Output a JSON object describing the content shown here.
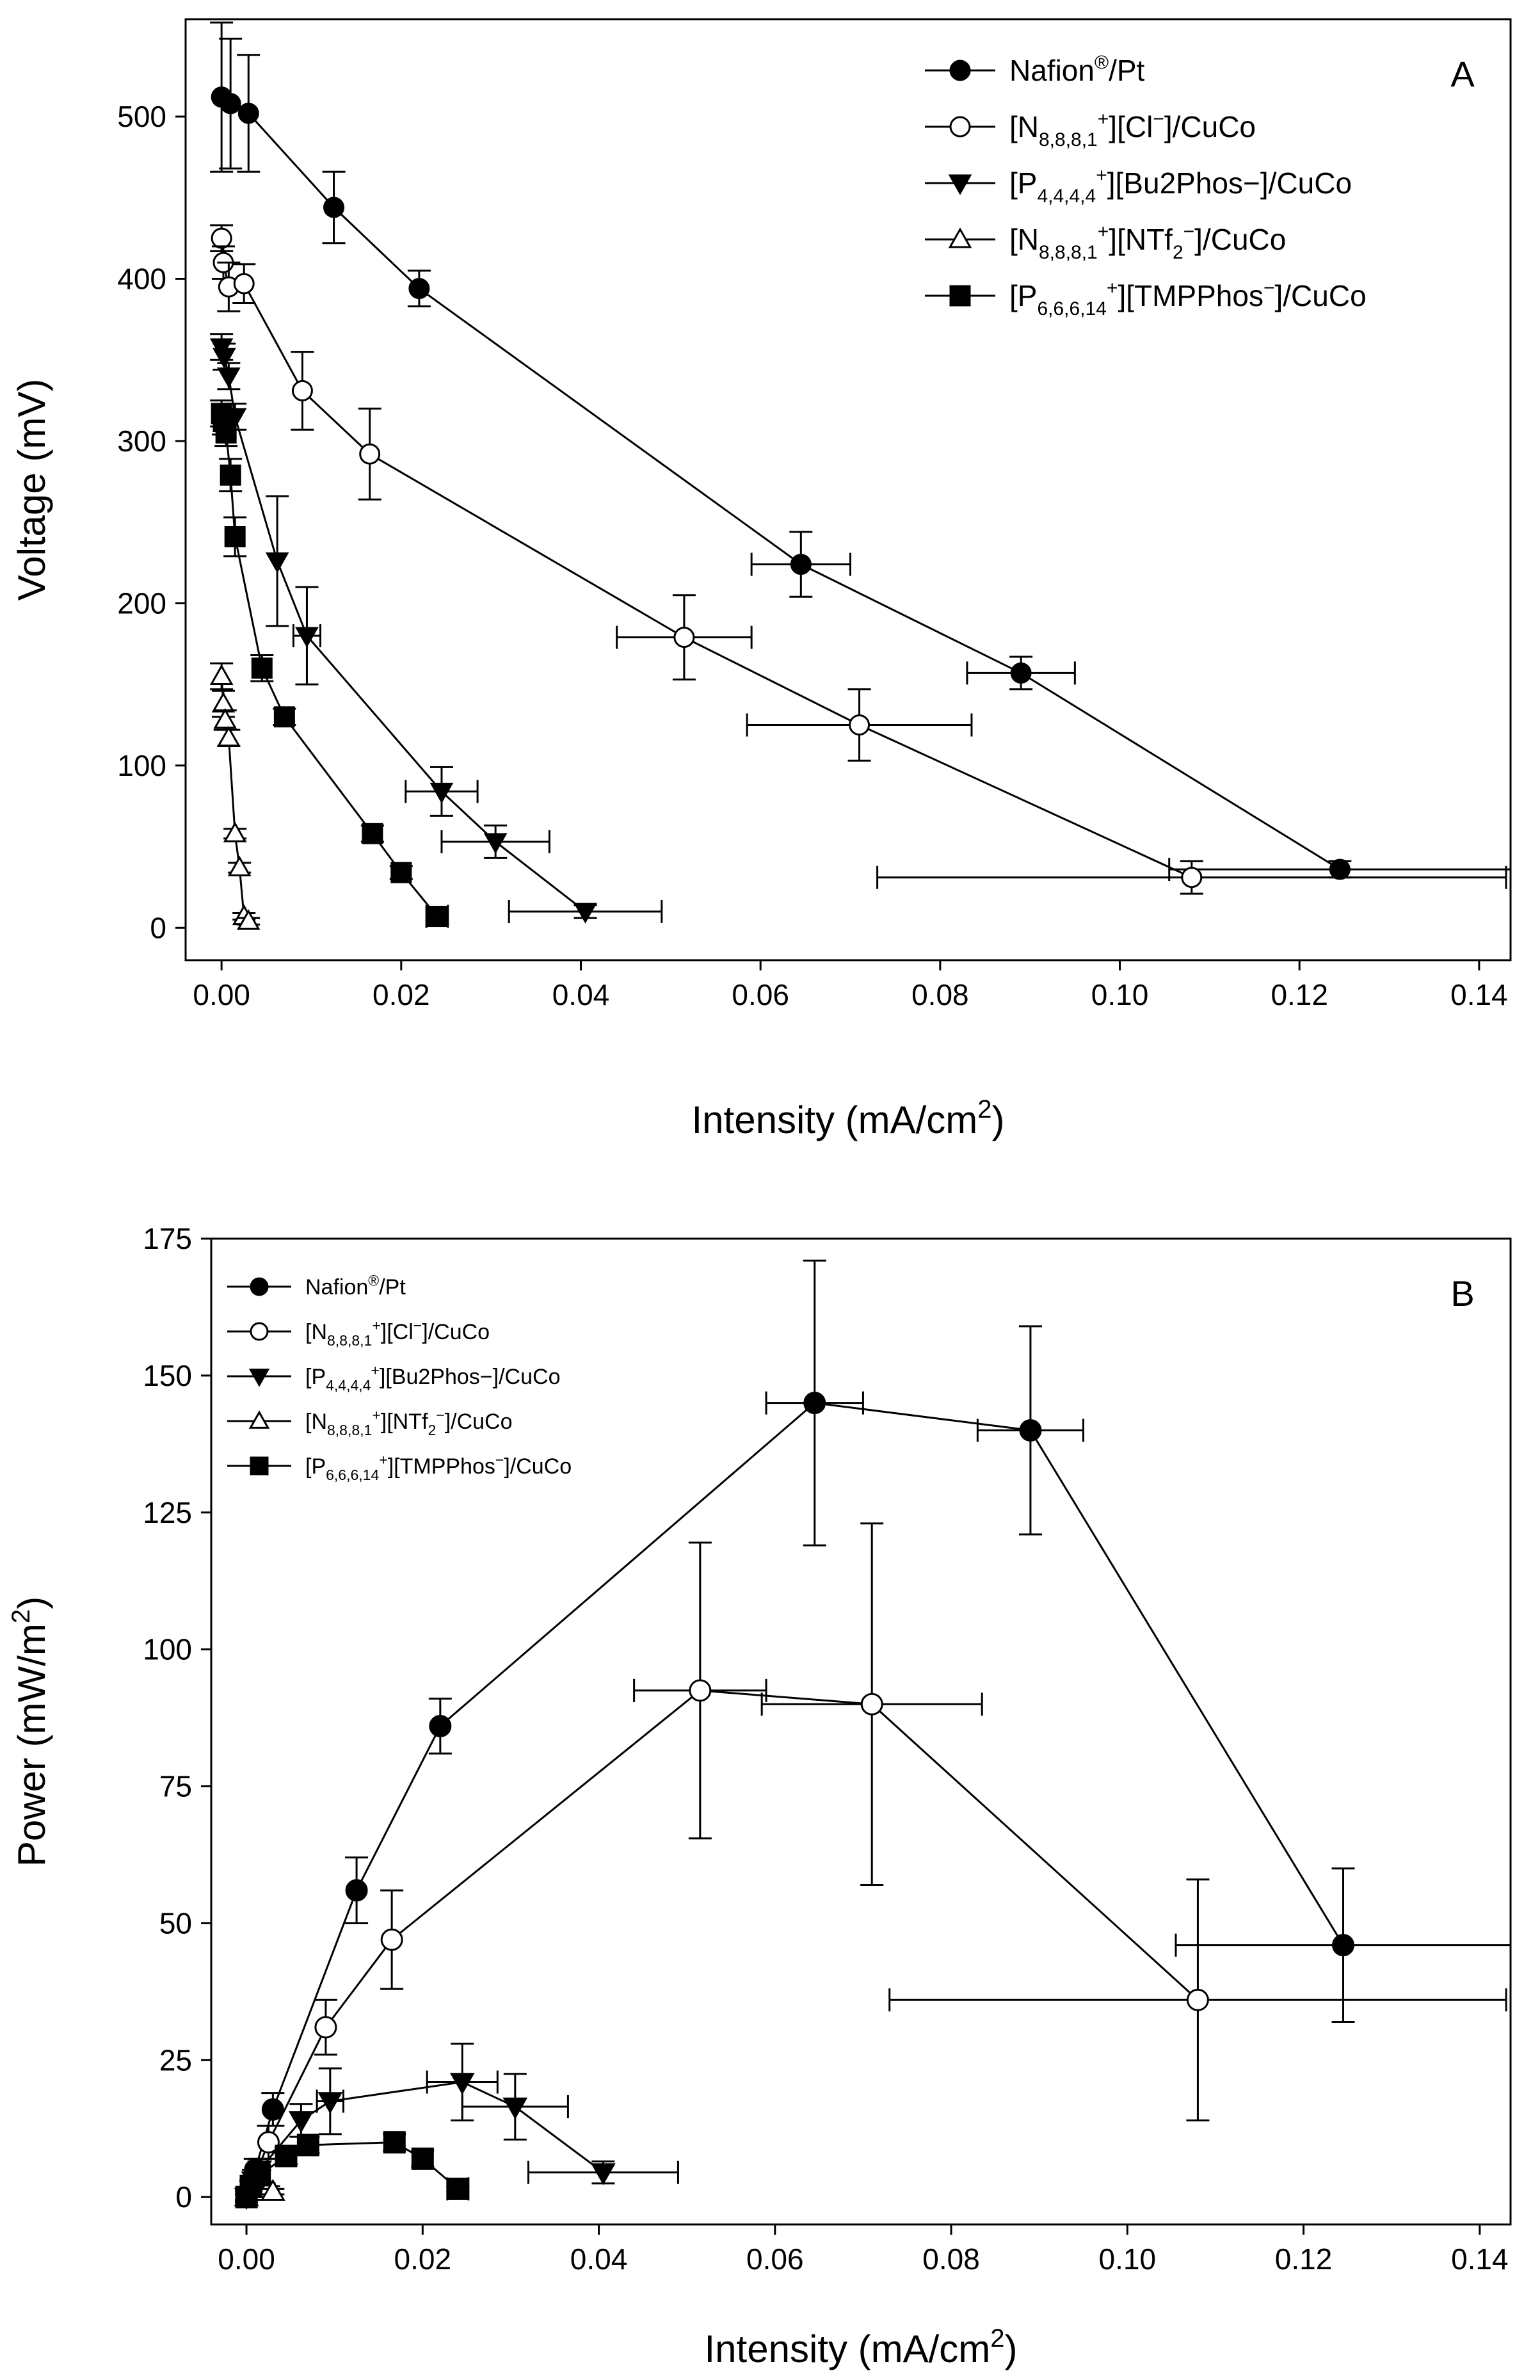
{
  "chart_data": [
    {
      "type": "scatter",
      "panel_label": "A",
      "xlabel": "Intensity (mA/cm",
      "xlabel_sup": "2",
      "xlabel_end": ")",
      "ylabel": "Voltage (mV)",
      "xlim": [
        -0.004,
        0.1435
      ],
      "ylim": [
        -20,
        560
      ],
      "xticks": [
        0,
        0.02,
        0.04,
        0.06,
        0.08,
        0.1,
        0.12,
        0.14
      ],
      "xtick_labels": [
        "0.00",
        "0.02",
        "0.04",
        "0.06",
        "0.08",
        "0.10",
        "0.12",
        "0.14"
      ],
      "yticks": [
        0,
        100,
        200,
        300,
        400,
        500
      ],
      "ytick_labels": [
        "0",
        "100",
        "200",
        "300",
        "400",
        "500"
      ],
      "grid": false,
      "legend_position": "top-right",
      "series": [
        {
          "name": "Nafion®/Pt",
          "marker": "circle-filled",
          "x": [
            0,
            0.001,
            0.003,
            0.0125,
            0.022,
            0.0645,
            0.089,
            0.1245
          ],
          "y": [
            512,
            508,
            502,
            444,
            394,
            224,
            157,
            36
          ],
          "yerr": [
            46,
            40,
            36,
            22,
            11,
            20,
            10,
            5
          ],
          "xerr": [
            0,
            0,
            0,
            0,
            0,
            0.0055,
            0.006,
            0.019
          ]
        },
        {
          "name": "[N8,8,8,1+][Cl−]/CuCo",
          "marker": "circle-open",
          "x": [
            0,
            0.0002,
            0.0008,
            0.0025,
            0.009,
            0.0165,
            0.0515,
            0.071,
            0.108
          ],
          "y": [
            425,
            410,
            395,
            397,
            331,
            292,
            179,
            125,
            31
          ],
          "yerr": [
            8,
            10,
            15,
            12,
            24,
            28,
            26,
            22,
            10
          ],
          "xerr": [
            0,
            0,
            0,
            0,
            0,
            0,
            0.0075,
            0.0125,
            0.035
          ]
        },
        {
          "name": "[P4,4,4,4+][Bu2Phos−]/CuCo",
          "marker": "triangle-down-filled",
          "x": [
            0,
            0.0003,
            0.0008,
            0.0015,
            0.0062,
            0.0095,
            0.0245,
            0.0305,
            0.0405
          ],
          "y": [
            358,
            352,
            340,
            315,
            226,
            180,
            84,
            53,
            10
          ],
          "yerr": [
            8,
            8,
            8,
            8,
            40,
            30,
            15,
            10,
            4
          ],
          "xerr": [
            0,
            0,
            0,
            0,
            0,
            0.0015,
            0.004,
            0.006,
            0.0085
          ]
        },
        {
          "name": "[N8,8,8,1+][NTf2−]/CuCo",
          "marker": "triangle-up-open",
          "x": [
            0,
            0.0002,
            0.0004,
            0.0008,
            0.0015,
            0.002,
            0.0025,
            0.003
          ],
          "y": [
            155,
            138,
            128,
            117,
            58,
            37,
            7,
            4
          ],
          "yerr": [
            8,
            8,
            6,
            5,
            3,
            3,
            2,
            2
          ],
          "xerr": [
            0,
            0,
            0,
            0,
            0,
            0,
            0,
            0
          ]
        },
        {
          "name": "[P6,6,6,14+][TMPPhos−]/CuCo",
          "marker": "square-filled",
          "x": [
            0,
            0.0002,
            0.0005,
            0.001,
            0.0015,
            0.0045,
            0.007,
            0.0168,
            0.02,
            0.024
          ],
          "y": [
            317,
            312,
            305,
            279,
            241,
            160,
            130,
            58,
            34,
            7
          ],
          "yerr": [
            8,
            8,
            8,
            10,
            12,
            8,
            5,
            5,
            4,
            3
          ],
          "xerr": [
            0,
            0,
            0,
            0,
            0,
            0,
            0,
            0,
            0,
            0.0012
          ]
        }
      ]
    },
    {
      "type": "scatter",
      "panel_label": "B",
      "xlabel": "Intensity (mA/cm",
      "xlabel_sup": "2",
      "xlabel_end": ")",
      "ylabel": "Power (mW/m",
      "ylabel_sup": "2",
      "ylabel_end": ")",
      "xlim": [
        -0.004,
        0.1435
      ],
      "ylim": [
        -5,
        175
      ],
      "xticks": [
        0,
        0.02,
        0.04,
        0.06,
        0.08,
        0.1,
        0.12,
        0.14
      ],
      "xtick_labels": [
        "0.00",
        "0.02",
        "0.04",
        "0.06",
        "0.08",
        "0.10",
        "0.12",
        "0.14"
      ],
      "yticks": [
        0,
        25,
        50,
        75,
        100,
        125,
        150,
        175
      ],
      "ytick_labels": [
        "0",
        "25",
        "50",
        "75",
        "100",
        "125",
        "150",
        "175"
      ],
      "grid": false,
      "legend_position": "top-left",
      "series": [
        {
          "name": "Nafion®/Pt",
          "marker": "circle-filled",
          "x": [
            0,
            0.001,
            0.003,
            0.0125,
            0.022,
            0.0645,
            0.089,
            0.1245
          ],
          "y": [
            0,
            5,
            16,
            56,
            86,
            145,
            140,
            46
          ],
          "yerr": [
            1,
            2,
            3,
            6,
            5,
            26,
            19,
            14
          ],
          "xerr": [
            0,
            0,
            0,
            0,
            0,
            0.0055,
            0.006,
            0.019
          ]
        },
        {
          "name": "[N8,8,8,1+][Cl−]/CuCo",
          "marker": "circle-open",
          "x": [
            0,
            0.0008,
            0.0025,
            0.009,
            0.0165,
            0.0515,
            0.071,
            0.108
          ],
          "y": [
            0,
            3,
            10,
            31,
            47,
            92.5,
            90,
            36
          ],
          "yerr": [
            1,
            2,
            3,
            5,
            9,
            27,
            33,
            22
          ],
          "xerr": [
            0,
            0,
            0,
            0,
            0,
            0.0075,
            0.0125,
            0.035
          ]
        },
        {
          "name": "[P4,4,4,4+][Bu2Phos−]/CuCo",
          "marker": "triangle-down-filled",
          "x": [
            0,
            0.0008,
            0.0015,
            0.0062,
            0.0095,
            0.0245,
            0.0305,
            0.0405
          ],
          "y": [
            0,
            3,
            5,
            14,
            17.5,
            21,
            16.5,
            4.5
          ],
          "yerr": [
            1,
            2,
            2,
            3,
            6,
            7,
            6,
            2
          ],
          "xerr": [
            0,
            0,
            0,
            0,
            0.0015,
            0.004,
            0.006,
            0.0085
          ]
        },
        {
          "name": "[N8,8,8,1+][NTf2−]/CuCo",
          "marker": "triangle-up-open",
          "x": [
            0,
            0.0008,
            0.0015,
            0.002,
            0.0025,
            0.003
          ],
          "y": [
            0,
            1,
            1.5,
            2,
            1.5,
            1
          ],
          "yerr": [
            0.5,
            0.5,
            0.5,
            0.5,
            0.5,
            0.5
          ],
          "xerr": [
            0,
            0,
            0,
            0,
            0,
            0
          ]
        },
        {
          "name": "[P6,6,6,14+][TMPPhos−]/CuCo",
          "marker": "square-filled",
          "x": [
            0,
            0.0005,
            0.0015,
            0.0045,
            0.007,
            0.0168,
            0.02,
            0.024
          ],
          "y": [
            0,
            2,
            4,
            7.5,
            9.5,
            10,
            7,
            1.5
          ],
          "yerr": [
            0.5,
            1,
            1,
            1.5,
            1.5,
            1.5,
            1.5,
            0.5
          ],
          "xerr": [
            0,
            0,
            0,
            0,
            0,
            0,
            0,
            0.0012
          ]
        }
      ]
    }
  ]
}
